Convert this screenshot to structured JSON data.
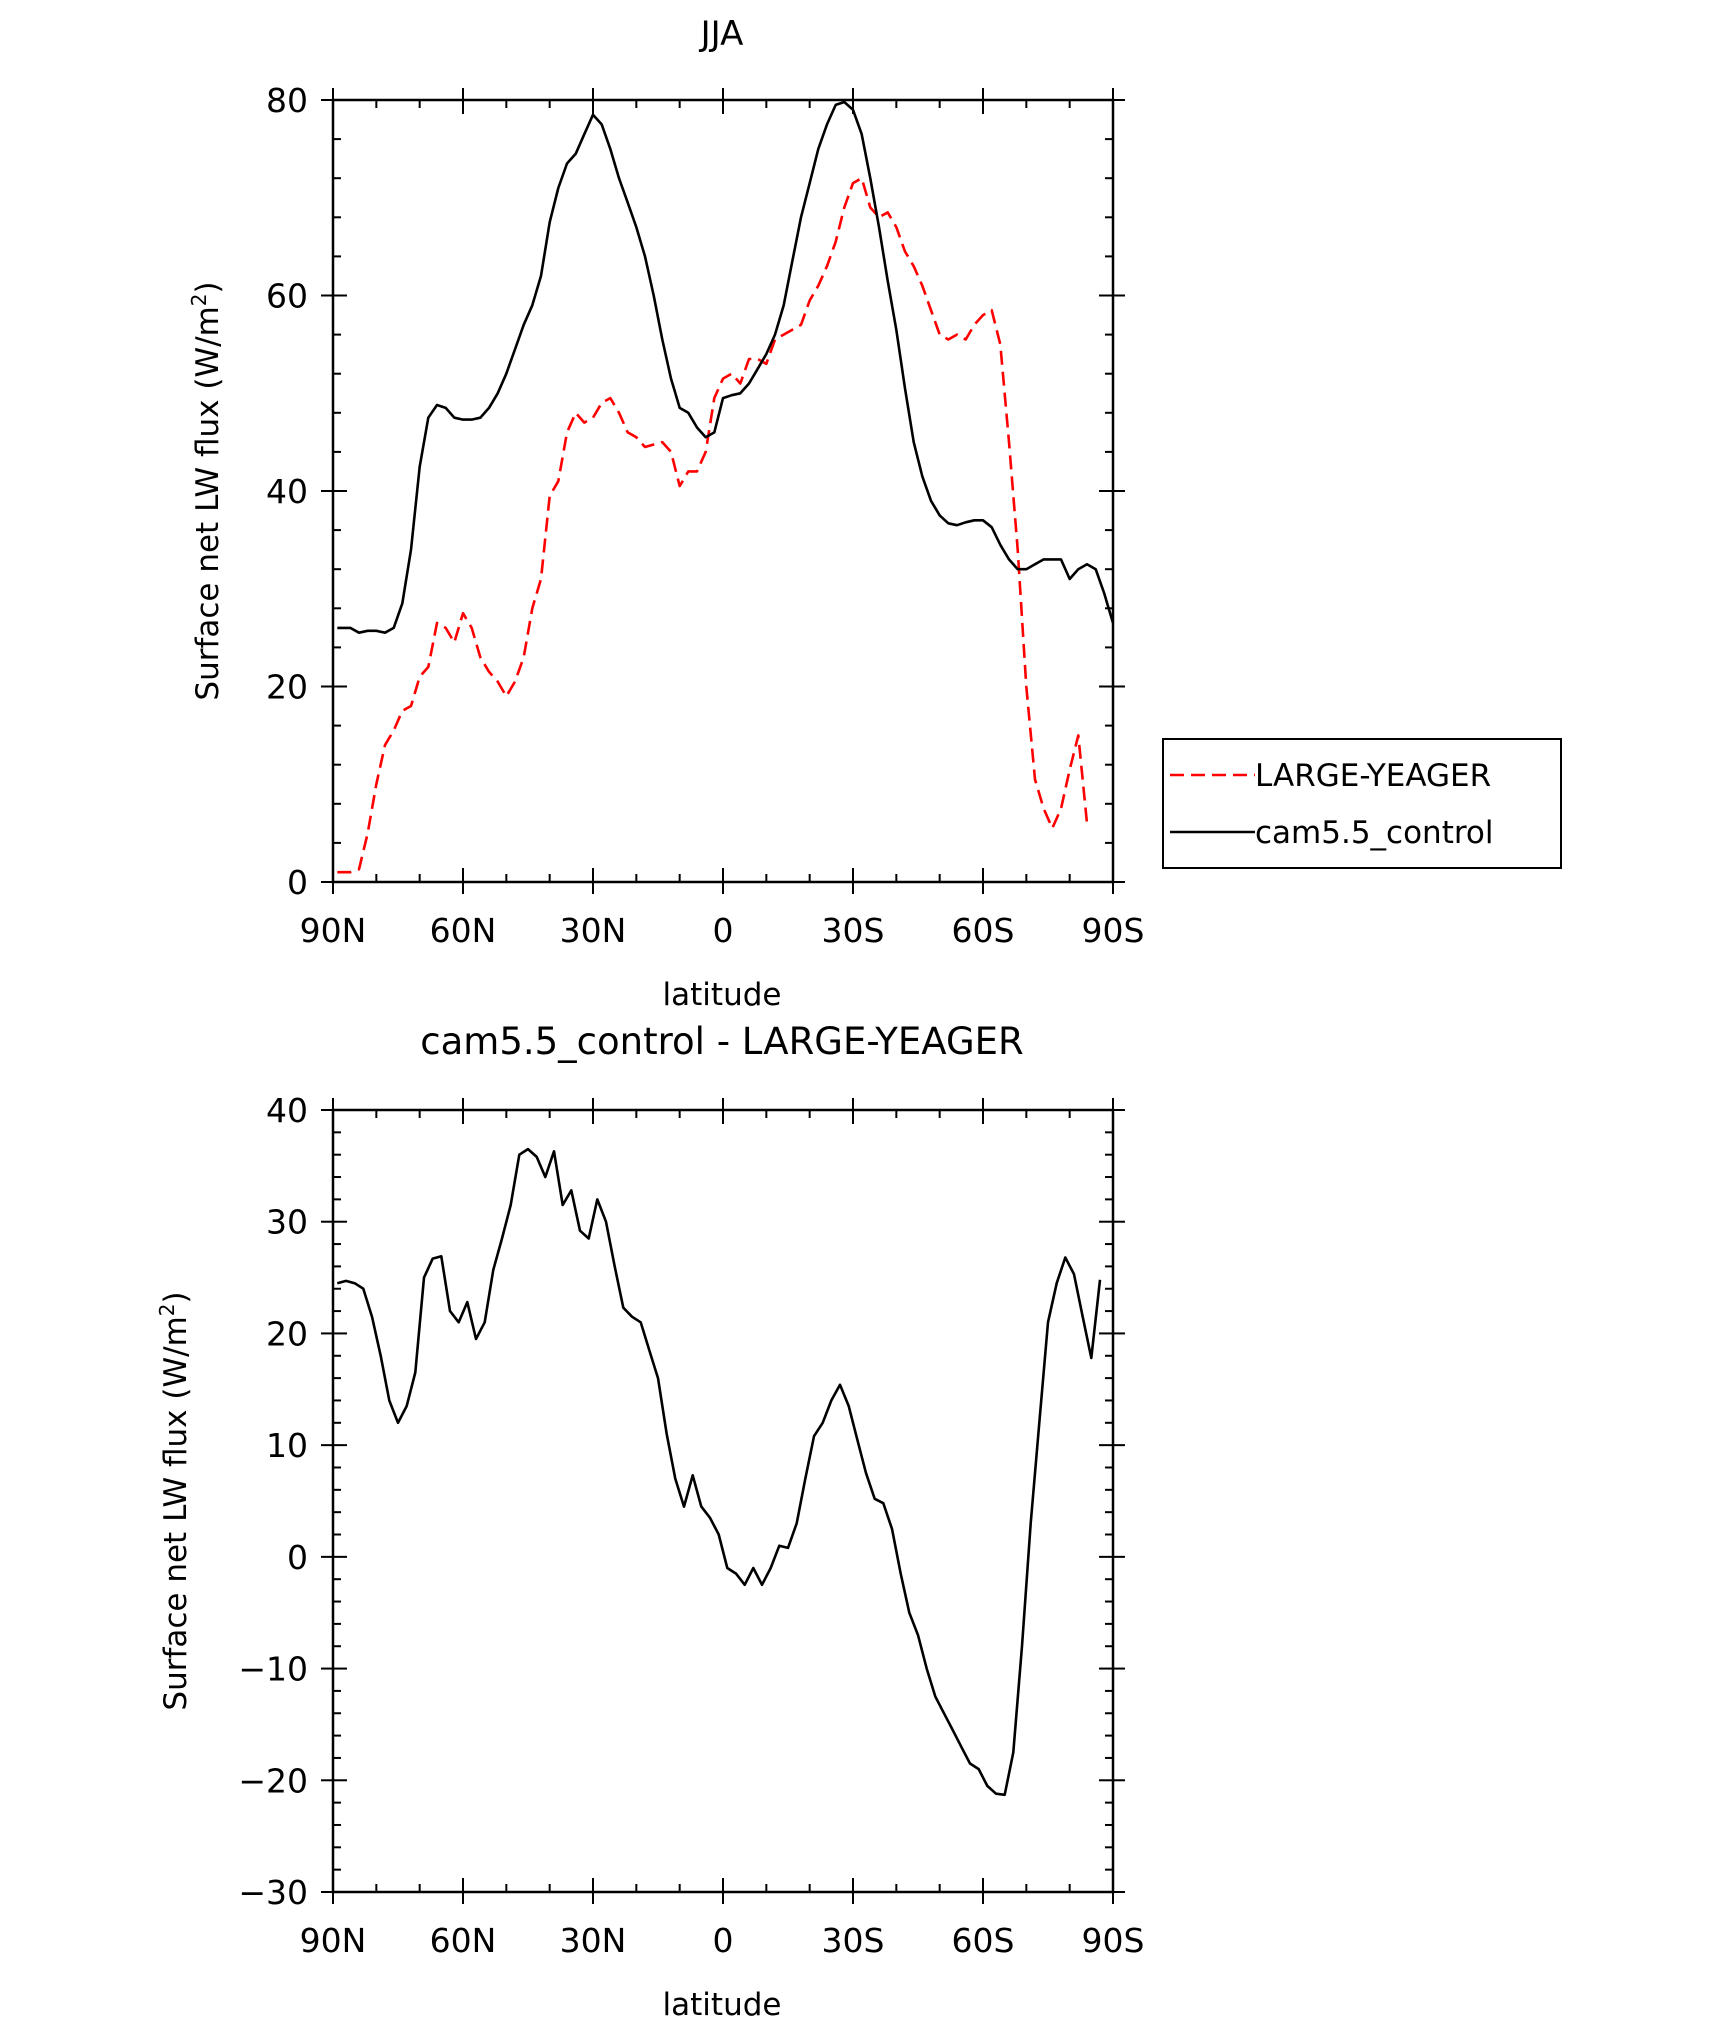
{
  "chart_data": [
    {
      "type": "line",
      "title": "JJA",
      "xlabel": "latitude",
      "ylabel": "Surface net LW flux (W/m",
      "ylabel_sup": "2",
      "ylabel_end": ")",
      "xlim": [
        90,
        -90
      ],
      "ylim": [
        0,
        80
      ],
      "x_ticks": [
        90,
        60,
        30,
        0,
        -30,
        -60,
        -90
      ],
      "x_tick_labels": [
        "90N",
        "60N",
        "30N",
        "0",
        "30S",
        "60S",
        "90S"
      ],
      "y_ticks": [
        0,
        20,
        40,
        60,
        80
      ],
      "y_tick_labels": [
        "0",
        "20",
        "40",
        "60",
        "80"
      ],
      "legend_position": "right",
      "series": [
        {
          "name": "LARGE-YEAGER",
          "color": "#ff0000",
          "style": "dashed",
          "points": [
            [
              89,
              1
            ],
            [
              86,
              1
            ],
            [
              84,
              1.3
            ],
            [
              82,
              5
            ],
            [
              80,
              10
            ],
            [
              78,
              14
            ],
            [
              76,
              15.5
            ],
            [
              74,
              17.5
            ],
            [
              72,
              18
            ],
            [
              70,
              21
            ],
            [
              68,
              22
            ],
            [
              66,
              26.5
            ],
            [
              64,
              26
            ],
            [
              62,
              24.5
            ],
            [
              60,
              27.5
            ],
            [
              58,
              26
            ],
            [
              56,
              23
            ],
            [
              54,
              21.5
            ],
            [
              52,
              20.5
            ],
            [
              50,
              19
            ],
            [
              48,
              20.5
            ],
            [
              46,
              23
            ],
            [
              44,
              28
            ],
            [
              42,
              31
            ],
            [
              40,
              39.5
            ],
            [
              38,
              41
            ],
            [
              36,
              46
            ],
            [
              34,
              48
            ],
            [
              32,
              47
            ],
            [
              30,
              47.5
            ],
            [
              28,
              49
            ],
            [
              26,
              49.5
            ],
            [
              24,
              48
            ],
            [
              22,
              46
            ],
            [
              20,
              45.5
            ],
            [
              18,
              44.5
            ],
            [
              14,
              45
            ],
            [
              12,
              44
            ],
            [
              10,
              40.5
            ],
            [
              8,
              42
            ],
            [
              6,
              42
            ],
            [
              4,
              44
            ],
            [
              2,
              49.5
            ],
            [
              0,
              51.5
            ],
            [
              -2,
              52
            ],
            [
              -4,
              51
            ],
            [
              -6,
              53.5
            ],
            [
              -8,
              53.5
            ],
            [
              -10,
              53
            ],
            [
              -12,
              55.5
            ],
            [
              -14,
              56
            ],
            [
              -16,
              56.5
            ],
            [
              -18,
              57
            ],
            [
              -20,
              59.5
            ],
            [
              -22,
              61
            ],
            [
              -24,
              63
            ],
            [
              -26,
              65.5
            ],
            [
              -28,
              69
            ],
            [
              -30,
              71.5
            ],
            [
              -32,
              72
            ],
            [
              -34,
              69
            ],
            [
              -36,
              68
            ],
            [
              -38,
              68.5
            ],
            [
              -40,
              67
            ],
            [
              -42,
              64.5
            ],
            [
              -44,
              63
            ],
            [
              -46,
              61
            ],
            [
              -48,
              58.5
            ],
            [
              -50,
              56
            ],
            [
              -52,
              55.5
            ],
            [
              -54,
              56
            ],
            [
              -56,
              55.5
            ],
            [
              -58,
              57
            ],
            [
              -60,
              58
            ],
            [
              -62,
              58.5
            ],
            [
              -64,
              55
            ],
            [
              -66,
              45
            ],
            [
              -68,
              34
            ],
            [
              -70,
              20
            ],
            [
              -72,
              10.5
            ],
            [
              -74,
              7.5
            ],
            [
              -76,
              5.5
            ],
            [
              -78,
              7.5
            ],
            [
              -80,
              11.5
            ],
            [
              -82,
              15
            ],
            [
              -84,
              6
            ]
          ]
        },
        {
          "name": "cam5.5_control",
          "color": "#000000",
          "style": "solid",
          "points": [
            [
              89,
              26
            ],
            [
              86,
              26
            ],
            [
              84,
              25.5
            ],
            [
              82,
              25.7
            ],
            [
              80,
              25.7
            ],
            [
              78,
              25.5
            ],
            [
              76,
              26
            ],
            [
              74,
              28.5
            ],
            [
              72,
              34
            ],
            [
              70,
              42.5
            ],
            [
              68,
              47.5
            ],
            [
              66,
              48.8
            ],
            [
              64,
              48.5
            ],
            [
              62,
              47.5
            ],
            [
              60,
              47.3
            ],
            [
              58,
              47.3
            ],
            [
              56,
              47.5
            ],
            [
              54,
              48.5
            ],
            [
              52,
              50
            ],
            [
              50,
              52
            ],
            [
              48,
              54.5
            ],
            [
              46,
              57
            ],
            [
              44,
              59
            ],
            [
              42,
              62
            ],
            [
              40,
              67.5
            ],
            [
              38,
              71
            ],
            [
              36,
              73.5
            ],
            [
              34,
              74.5
            ],
            [
              32,
              76.5
            ],
            [
              30,
              78.5
            ],
            [
              28,
              77.5
            ],
            [
              26,
              75
            ],
            [
              24,
              72
            ],
            [
              22,
              69.5
            ],
            [
              20,
              67
            ],
            [
              18,
              64
            ],
            [
              16,
              60
            ],
            [
              14,
              55.5
            ],
            [
              12,
              51.5
            ],
            [
              10,
              48.5
            ],
            [
              8,
              48
            ],
            [
              6,
              46.5
            ],
            [
              4,
              45.5
            ],
            [
              2,
              46
            ],
            [
              0,
              49.5
            ],
            [
              -2,
              49.8
            ],
            [
              -4,
              50
            ],
            [
              -6,
              51
            ],
            [
              -8,
              52.5
            ],
            [
              -10,
              54
            ],
            [
              -12,
              56
            ],
            [
              -14,
              59
            ],
            [
              -16,
              63.5
            ],
            [
              -18,
              68
            ],
            [
              -20,
              71.5
            ],
            [
              -22,
              75
            ],
            [
              -24,
              77.5
            ],
            [
              -26,
              79.5
            ],
            [
              -28,
              79.8
            ],
            [
              -30,
              79
            ],
            [
              -32,
              76.5
            ],
            [
              -34,
              72
            ],
            [
              -36,
              67
            ],
            [
              -38,
              61.5
            ],
            [
              -40,
              56.5
            ],
            [
              -42,
              50.5
            ],
            [
              -44,
              45
            ],
            [
              -46,
              41.5
            ],
            [
              -48,
              39
            ],
            [
              -50,
              37.5
            ],
            [
              -52,
              36.7
            ],
            [
              -54,
              36.5
            ],
            [
              -56,
              36.8
            ],
            [
              -58,
              37
            ],
            [
              -60,
              37
            ],
            [
              -62,
              36.3
            ],
            [
              -64,
              34.5
            ],
            [
              -66,
              33
            ],
            [
              -68,
              32
            ],
            [
              -70,
              32
            ],
            [
              -72,
              32.5
            ],
            [
              -74,
              33
            ],
            [
              -76,
              33
            ],
            [
              -78,
              33
            ],
            [
              -80,
              31
            ],
            [
              -82,
              32
            ],
            [
              -84,
              32.5
            ],
            [
              -86,
              32
            ],
            [
              -88,
              29.5
            ],
            [
              -90,
              26.5
            ]
          ]
        }
      ]
    },
    {
      "type": "line",
      "title": "cam5.5_control - LARGE-YEAGER",
      "xlabel": "latitude",
      "ylabel": "Surface net LW flux (W/m",
      "ylabel_sup": "2",
      "ylabel_end": ")",
      "xlim": [
        90,
        -90
      ],
      "ylim": [
        -30,
        40
      ],
      "x_ticks": [
        90,
        60,
        30,
        0,
        -30,
        -60,
        -90
      ],
      "x_tick_labels": [
        "90N",
        "60N",
        "30N",
        "0",
        "30S",
        "60S",
        "90S"
      ],
      "y_ticks": [
        -30,
        -20,
        -10,
        0,
        10,
        20,
        30,
        40
      ],
      "y_tick_labels": [
        "−30",
        "−20",
        "−10",
        "0",
        "10",
        "20",
        "30",
        "40"
      ],
      "series": [
        {
          "color": "#000000",
          "style": "solid",
          "points": [
            [
              89,
              24.5
            ],
            [
              87,
              24.7
            ],
            [
              85,
              24.5
            ],
            [
              83,
              24
            ],
            [
              81,
              21.5
            ],
            [
              79,
              18
            ],
            [
              77,
              14
            ],
            [
              75,
              12
            ],
            [
              73,
              13.5
            ],
            [
              71,
              16.5
            ],
            [
              69,
              25
            ],
            [
              67,
              26.7
            ],
            [
              65,
              26.9
            ],
            [
              63,
              22
            ],
            [
              61,
              21
            ],
            [
              59,
              22.8
            ],
            [
              57,
              19.5
            ],
            [
              55,
              21
            ],
            [
              53,
              25.7
            ],
            [
              51,
              28.5
            ],
            [
              49,
              31.5
            ],
            [
              47,
              36
            ],
            [
              45,
              36.5
            ],
            [
              43,
              35.8
            ],
            [
              41,
              34
            ],
            [
              39,
              36.3
            ],
            [
              37,
              31.5
            ],
            [
              35,
              32.8
            ],
            [
              33,
              29.2
            ],
            [
              31,
              28.5
            ],
            [
              29,
              32
            ],
            [
              27,
              30
            ],
            [
              25,
              26
            ],
            [
              23,
              22.3
            ],
            [
              21,
              21.5
            ],
            [
              19,
              21
            ],
            [
              17,
              18.5
            ],
            [
              15,
              16
            ],
            [
              13,
              11
            ],
            [
              11,
              7
            ],
            [
              9,
              4.5
            ],
            [
              7,
              7.3
            ],
            [
              5,
              4.5
            ],
            [
              3,
              3.5
            ],
            [
              1,
              2
            ],
            [
              -1,
              -1
            ],
            [
              -3,
              -1.5
            ],
            [
              -5,
              -2.5
            ],
            [
              -7,
              -1
            ],
            [
              -9,
              -2.5
            ],
            [
              -11,
              -1
            ],
            [
              -13,
              1
            ],
            [
              -15,
              0.8
            ],
            [
              -17,
              3
            ],
            [
              -19,
              7
            ],
            [
              -21,
              10.8
            ],
            [
              -23,
              12
            ],
            [
              -25,
              14
            ],
            [
              -27,
              15.4
            ],
            [
              -29,
              13.5
            ],
            [
              -31,
              10.5
            ],
            [
              -33,
              7.5
            ],
            [
              -35,
              5.2
            ],
            [
              -37,
              4.8
            ],
            [
              -39,
              2.5
            ],
            [
              -41,
              -1.5
            ],
            [
              -43,
              -5
            ],
            [
              -45,
              -7
            ],
            [
              -47,
              -10
            ],
            [
              -49,
              -12.5
            ],
            [
              -51,
              -14
            ],
            [
              -53,
              -15.5
            ],
            [
              -55,
              -17
            ],
            [
              -57,
              -18.5
            ],
            [
              -59,
              -19
            ],
            [
              -61,
              -20.5
            ],
            [
              -63,
              -21.2
            ],
            [
              -65,
              -21.3
            ],
            [
              -67,
              -17.5
            ],
            [
              -69,
              -8
            ],
            [
              -71,
              3
            ],
            [
              -73,
              12
            ],
            [
              -75,
              21
            ],
            [
              -77,
              24.5
            ],
            [
              -79,
              26.8
            ],
            [
              -81,
              25.3
            ],
            [
              -83,
              21.5
            ],
            [
              -85,
              17.8
            ],
            [
              -87,
              24.8
            ]
          ]
        }
      ]
    }
  ]
}
